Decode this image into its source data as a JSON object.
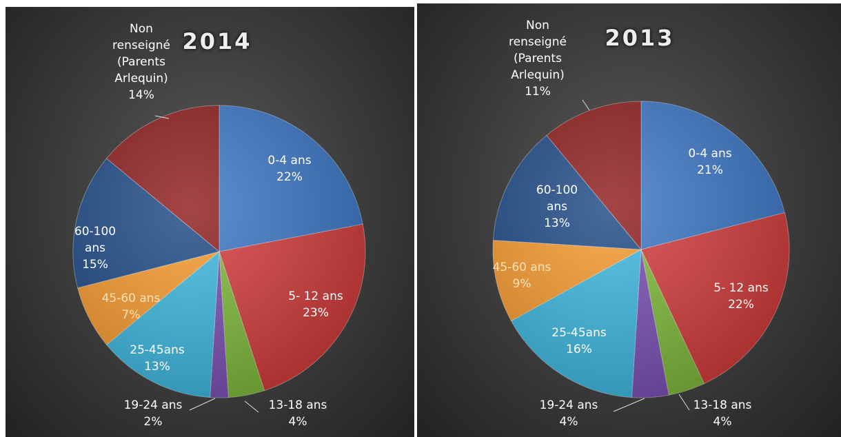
{
  "chart_data": [
    {
      "type": "pie",
      "title": "2014",
      "categories": [
        "0-4 ans",
        "5- 12 ans",
        "13-18 ans",
        "19-24 ans",
        "25-45ans",
        "45-60 ans",
        "60-100 ans",
        "Non renseigné (Parents Arlequin)"
      ],
      "values": [
        22,
        23,
        4,
        2,
        13,
        7,
        15,
        14
      ],
      "value_labels": [
        "22%",
        "23%",
        "4%",
        "2%",
        "13%",
        "7%",
        "15%",
        "14%"
      ],
      "colors": [
        "#3b76c6",
        "#d43c3c",
        "#7fba3a",
        "#7b4fb3",
        "#3db8e0",
        "#f79a2e",
        "#1f4a88",
        "#8f1d1d"
      ]
    },
    {
      "type": "pie",
      "title": "2013",
      "categories": [
        "0-4 ans",
        "5- 12 ans",
        "13-18 ans",
        "19-24 ans",
        "25-45ans",
        "45-60 ans",
        "60-100 ans",
        "Non renseigné (Parents Arlequin)"
      ],
      "values": [
        21,
        22,
        4,
        4,
        16,
        9,
        13,
        11
      ],
      "value_labels": [
        "21%",
        "22%",
        "4%",
        "4%",
        "16%",
        "9%",
        "13%",
        "11%"
      ],
      "colors": [
        "#3b76c6",
        "#d43c3c",
        "#7fba3a",
        "#7b4fb3",
        "#3db8e0",
        "#f79a2e",
        "#1f4a88",
        "#8f1d1d"
      ]
    }
  ]
}
